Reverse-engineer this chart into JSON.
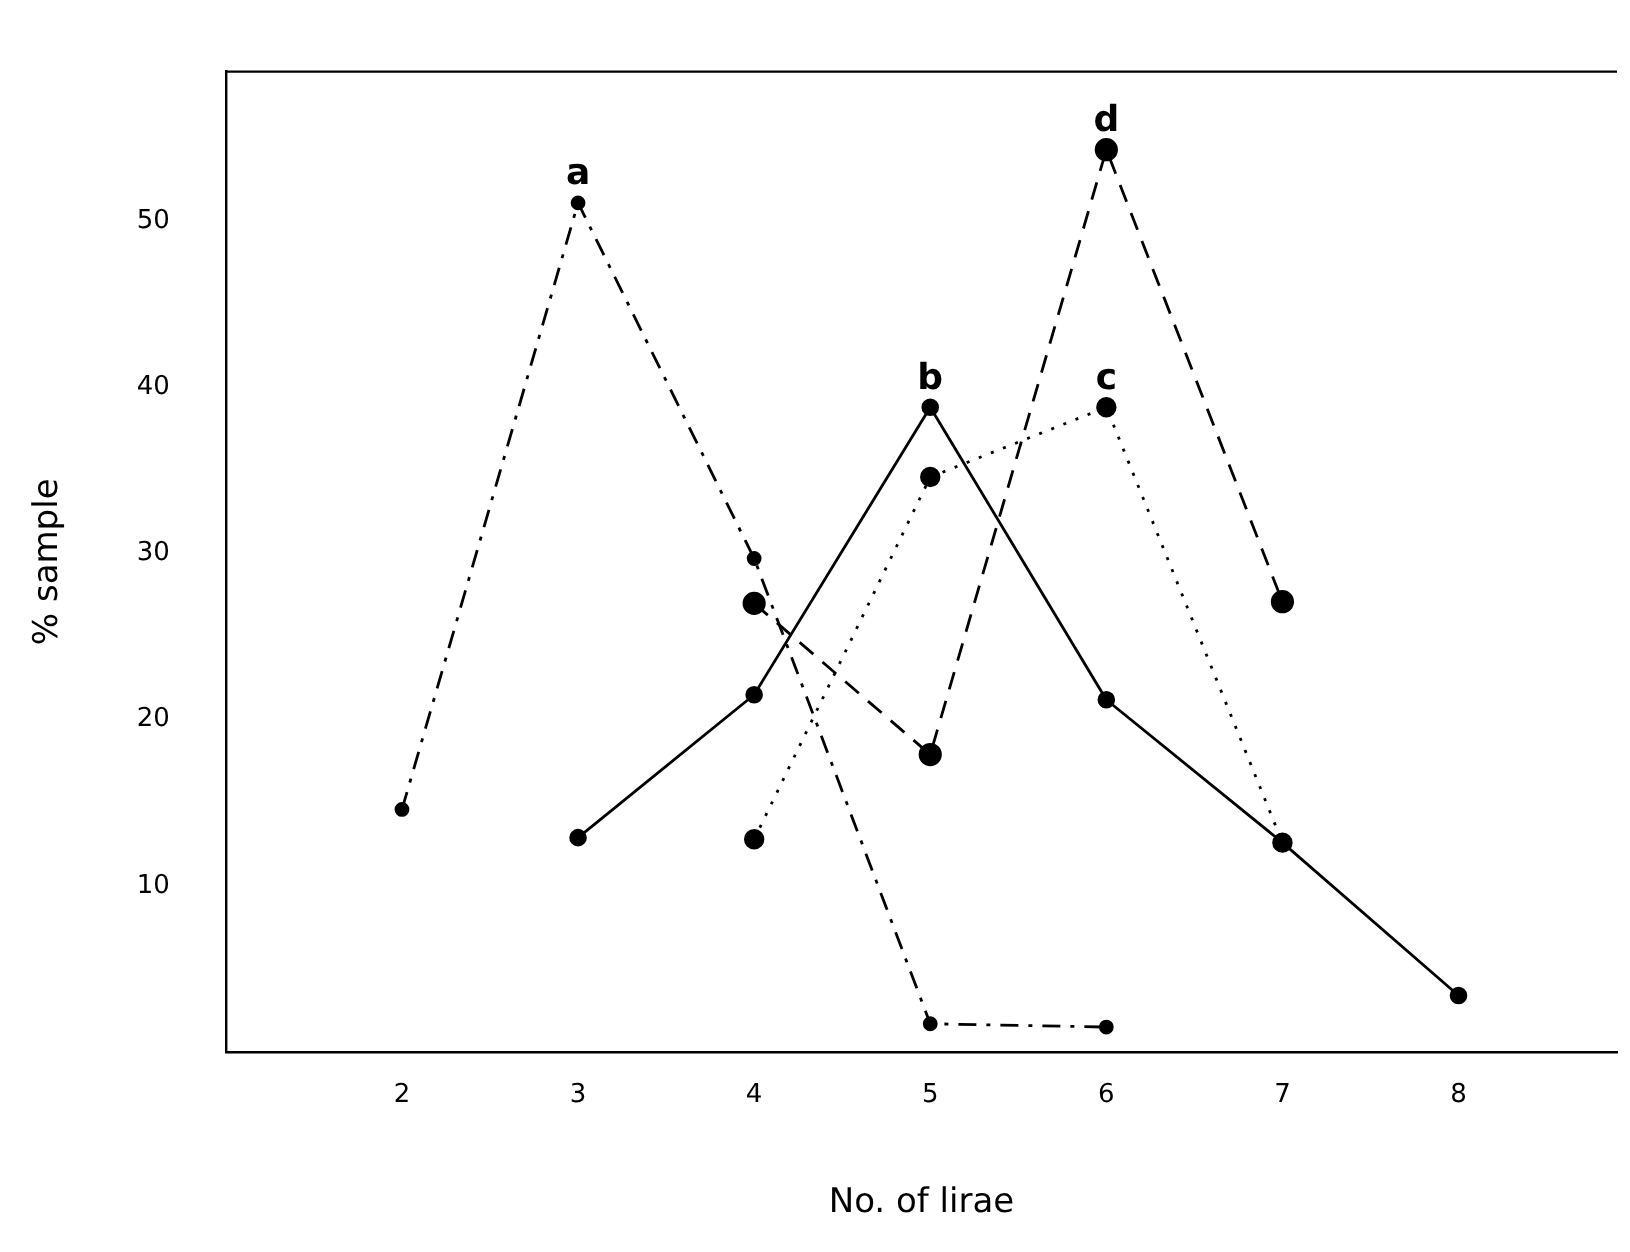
{
  "chart_data": {
    "type": "line",
    "xlabel": "No. of lirae",
    "ylabel": "% sample",
    "xlim": [
      1,
      8.9
    ],
    "xticks": [
      2,
      3,
      4,
      5,
      6,
      7,
      8
    ],
    "ylim": [
      0,
      59
    ],
    "yticks": [
      10,
      20,
      30,
      40,
      50
    ],
    "grid": false,
    "legend": false,
    "marker": "circle",
    "series": [
      {
        "name": "a",
        "color": "#000000",
        "line_style": "dashdot",
        "x": [
          2,
          3,
          4,
          5,
          6
        ],
        "values": [
          14.6,
          51.1,
          29.7,
          1.7,
          1.5
        ]
      },
      {
        "name": "b",
        "color": "#000000",
        "line_style": "solid",
        "x": [
          3,
          4,
          5,
          6,
          7,
          8
        ],
        "values": [
          12.9,
          21.5,
          38.8,
          21.2,
          12.6,
          3.4
        ]
      },
      {
        "name": "c",
        "color": "#000000",
        "line_style": "dotted",
        "x": [
          4,
          5,
          6,
          7
        ],
        "values": [
          12.8,
          34.6,
          38.8,
          12.6
        ]
      },
      {
        "name": "d",
        "color": "#000000",
        "line_style": "dashed",
        "x": [
          4,
          5,
          6,
          7
        ],
        "values": [
          27.0,
          17.9,
          54.3,
          27.1
        ]
      }
    ]
  }
}
